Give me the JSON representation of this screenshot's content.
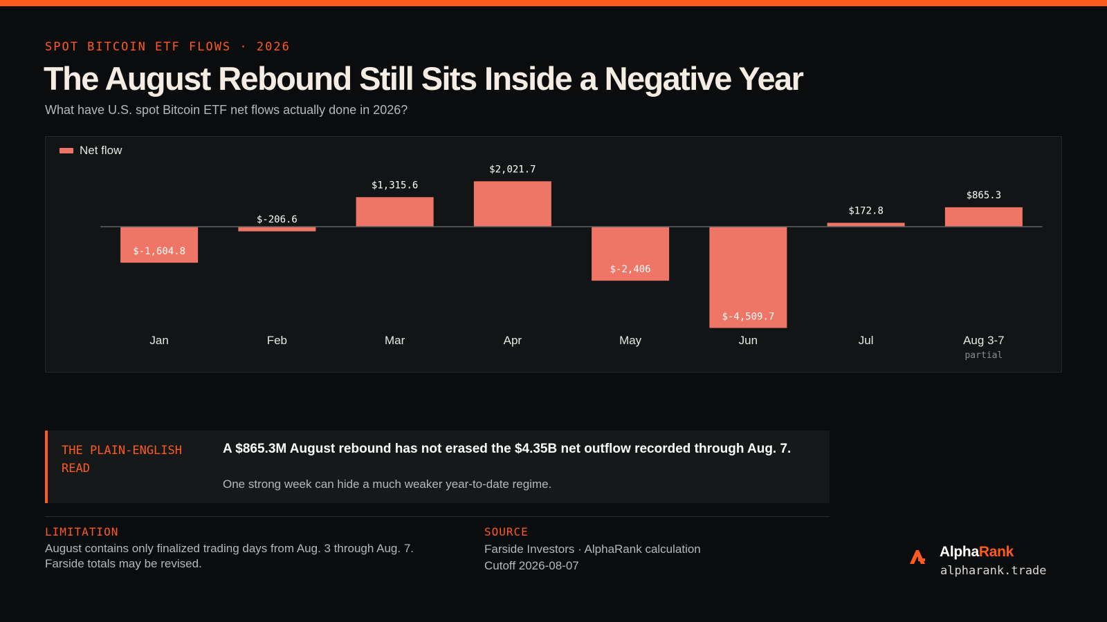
{
  "header": {
    "kicker": "SPOT BITCOIN ETF FLOWS · 2026",
    "title": "The August Rebound Still Sits Inside a Negative Year",
    "subtitle": "What have U.S. spot Bitcoin ETF net flows actually done in 2026?"
  },
  "chart_data": {
    "type": "bar",
    "categories": [
      "Jan",
      "Feb",
      "Mar",
      "Apr",
      "May",
      "Jun",
      "Jul",
      "Aug 3-7"
    ],
    "category_notes": [
      "",
      "",
      "",
      "",
      "",
      "",
      "",
      "partial"
    ],
    "series": [
      {
        "name": "Net flow",
        "values": [
          -1604.8,
          -206.6,
          1315.6,
          2021.7,
          -2406,
          -4509.7,
          172.8,
          865.3
        ]
      }
    ],
    "value_labels": [
      "$-1,604.8",
      "$-206.6",
      "$1,315.6",
      "$2,021.7",
      "$-2,406",
      "$-4,509.7",
      "$172.8",
      "$865.3"
    ],
    "legend_position": "top-left",
    "grid": false,
    "color": "#ef7567",
    "baseline_color": "#5a5e61"
  },
  "callout": {
    "label": "THE PLAIN-ENGLISH READ",
    "headline": "A $865.3M August rebound has not erased the $4.35B net outflow recorded through Aug. 7.",
    "body": "One strong week can hide a much weaker year-to-date regime."
  },
  "limitation": {
    "label": "LIMITATION",
    "line1": "August contains only finalized trading days from Aug. 3 through Aug. 7.",
    "line2": "Farside totals may be revised."
  },
  "source": {
    "label": "SOURCE",
    "line1": "Farside Investors · AlphaRank calculation",
    "line2": "Cutoff 2026-08-07"
  },
  "brand": {
    "name_part1": "Alpha",
    "name_part2": "Rank",
    "url": "alpharank.trade",
    "accent": "#ff5a1f"
  }
}
